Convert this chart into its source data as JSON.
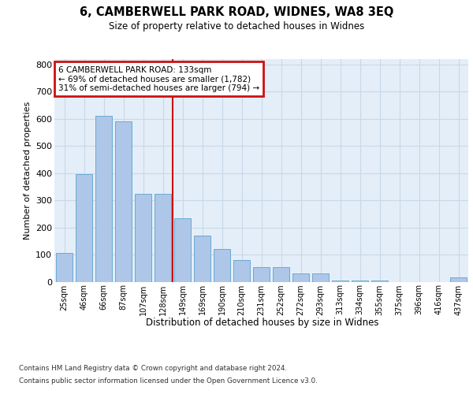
{
  "title": "6, CAMBERWELL PARK ROAD, WIDNES, WA8 3EQ",
  "subtitle": "Size of property relative to detached houses in Widnes",
  "xlabel": "Distribution of detached houses by size in Widnes",
  "ylabel": "Number of detached properties",
  "categories": [
    "25sqm",
    "46sqm",
    "66sqm",
    "87sqm",
    "107sqm",
    "128sqm",
    "149sqm",
    "169sqm",
    "190sqm",
    "210sqm",
    "231sqm",
    "252sqm",
    "272sqm",
    "293sqm",
    "313sqm",
    "334sqm",
    "355sqm",
    "375sqm",
    "396sqm",
    "416sqm",
    "437sqm"
  ],
  "values": [
    105,
    395,
    610,
    590,
    325,
    325,
    235,
    170,
    120,
    80,
    55,
    55,
    30,
    30,
    5,
    5,
    5,
    0,
    0,
    0,
    15
  ],
  "bar_color": "#aec6e8",
  "bar_edge_color": "#6aaad4",
  "vline_index": 5,
  "vline_color": "#cc1111",
  "annotation_text": "6 CAMBERWELL PARK ROAD: 133sqm\n← 69% of detached houses are smaller (1,782)\n31% of semi-detached houses are larger (794) →",
  "annotation_box_edgecolor": "#cc1111",
  "ylim": [
    0,
    820
  ],
  "yticks": [
    0,
    100,
    200,
    300,
    400,
    500,
    600,
    700,
    800
  ],
  "grid_color": "#c8d8e8",
  "plot_bg_color": "#e4eef8",
  "footer_line1": "Contains HM Land Registry data © Crown copyright and database right 2024.",
  "footer_line2": "Contains public sector information licensed under the Open Government Licence v3.0."
}
